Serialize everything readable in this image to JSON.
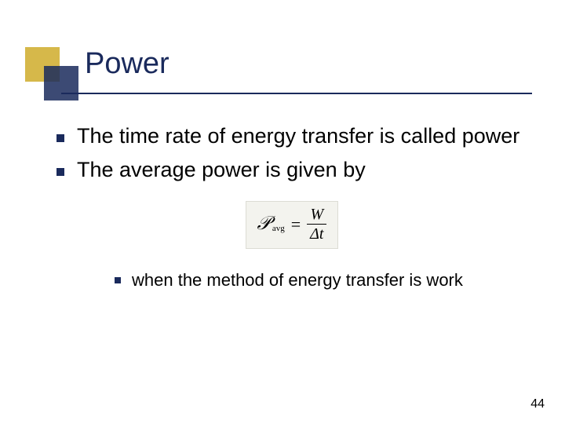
{
  "title": "Power",
  "bullets": [
    "The time rate of energy transfer is called power",
    "The average power is given by"
  ],
  "formula": {
    "lhs_symbol": "𝒫",
    "lhs_sub": "avg",
    "eq": "=",
    "num": "W",
    "den": "Δt"
  },
  "sub_bullet": "when the method of energy transfer is work",
  "page_number": "44",
  "colors": {
    "gold": "#d6b84a",
    "navy": "#1a2a5c",
    "formula_bg": "#f3f3ee"
  }
}
